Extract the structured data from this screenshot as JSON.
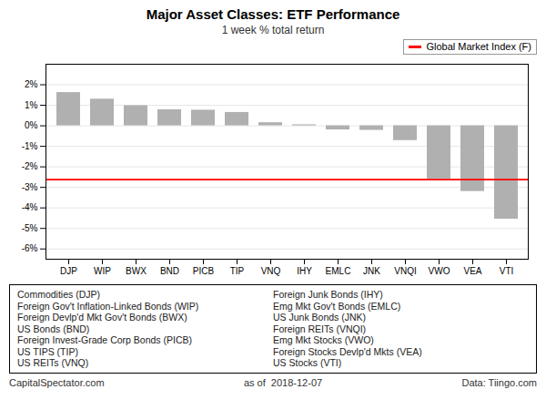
{
  "chart_data": {
    "type": "bar",
    "title": "Major Asset Classes: ETF Performance",
    "subtitle": "1 week % total return",
    "categories": [
      "DJP",
      "WIP",
      "BWX",
      "BND",
      "PICB",
      "TIP",
      "VNQ",
      "IHY",
      "EMLC",
      "JNK",
      "VNQI",
      "VWO",
      "VEA",
      "VTI"
    ],
    "values": [
      1.62,
      1.3,
      0.98,
      0.78,
      0.76,
      0.65,
      0.15,
      0.05,
      -0.2,
      -0.22,
      -0.72,
      -2.6,
      -3.2,
      -4.55
    ],
    "color": "#b0b0b0",
    "hlines": [
      {
        "value": -2.62,
        "name": "Global Market Index (F)",
        "color": "#ff0000"
      }
    ],
    "ylim": [
      -6.5,
      3.0
    ],
    "yticks": [
      {
        "value": -6,
        "label": "-6%"
      },
      {
        "value": -5,
        "label": "-5%"
      },
      {
        "value": -4,
        "label": "-4%"
      },
      {
        "value": -3,
        "label": "-3%"
      },
      {
        "value": -2,
        "label": "-2%"
      },
      {
        "value": -1,
        "label": "-1%"
      },
      {
        "value": 0,
        "label": "0%"
      },
      {
        "value": 1,
        "label": "1%"
      },
      {
        "value": 2,
        "label": "2%"
      }
    ],
    "grid": true,
    "legend": "upper right",
    "annotations": {
      "key_left": [
        "Commodities (DJP)",
        "Foreign Gov't Inflation-Linked Bonds (WIP)",
        "Foreign Devlp'd Mkt Gov't Bonds (BWX)",
        "US Bonds (BND)",
        "Foreign Invest-Grade Corp Bonds (PICB)",
        "US TIPS (TIP)",
        "US REITs (VNQ)"
      ],
      "key_right": [
        "Foreign Junk Bonds (IHY)",
        "Emg Mkt Gov't Bonds (EMLC)",
        "US Junk Bonds (JNK)",
        "Foreign REITs (VNQI)",
        "Emg Mkt Stocks (VWO)",
        "Foreign Stocks Devlp'd Mkts (VEA)",
        "US Stocks (VTI)"
      ],
      "footer_left": "CapitalSpectator.com",
      "footer_center": "as of  2018-12-07",
      "footer_right": "Data: Tiingo.com"
    }
  }
}
